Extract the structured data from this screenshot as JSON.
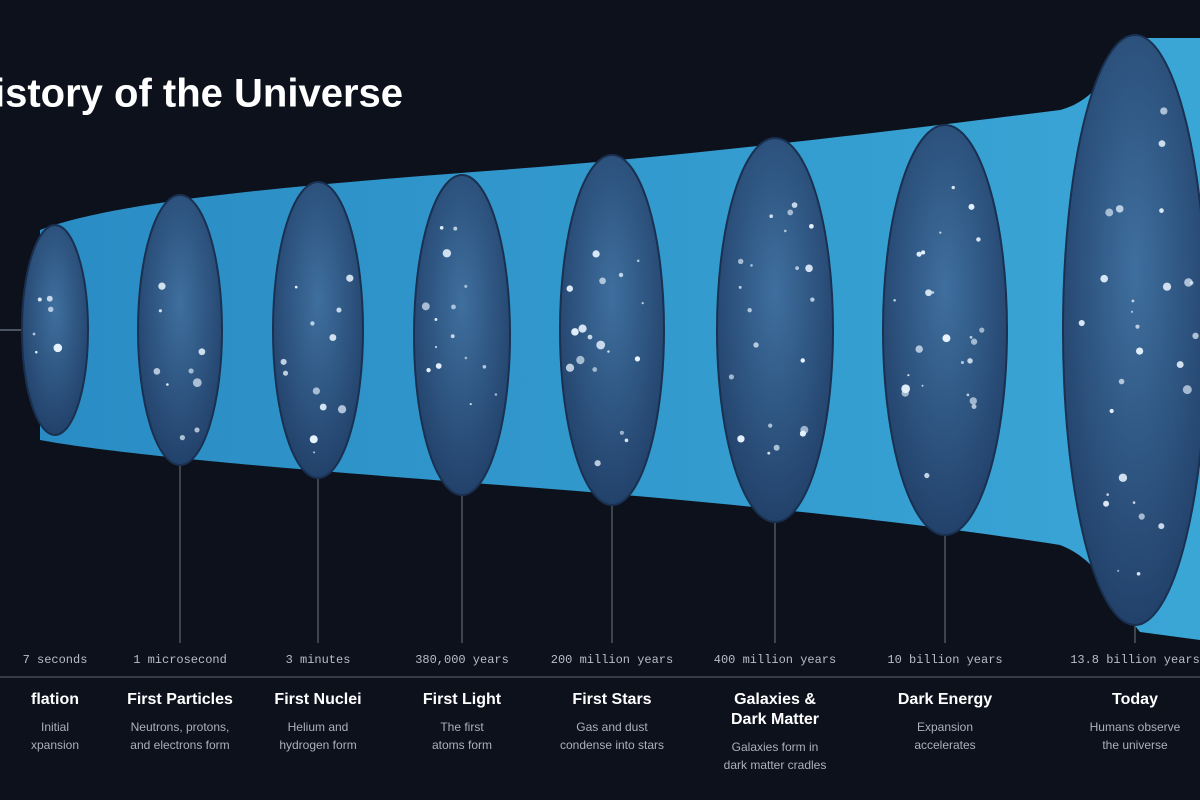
{
  "header": {
    "title": "istory of the Universe"
  },
  "stages": [
    {
      "time": "7 seconds",
      "name": "flation",
      "description": [
        "Initial",
        "xpansion"
      ]
    },
    {
      "time": "1 microsecond",
      "name": "First Particles",
      "description": [
        "Neutrons, protons,",
        "and electrons form"
      ]
    },
    {
      "time": "3 minutes",
      "name": "First Nuclei",
      "description": [
        "Helium and",
        "hydrogen form"
      ]
    },
    {
      "time": "380,000 years",
      "name": "First Light",
      "description": [
        "The first",
        "atoms form"
      ]
    },
    {
      "time": "200 million years",
      "name": "First Stars",
      "description": [
        "Gas and dust",
        "condense into stars"
      ]
    },
    {
      "time": "400 million years",
      "name": [
        "Galaxies &",
        "Dark Matter"
      ],
      "description": [
        "Galaxies form in",
        "dark matter cradles"
      ]
    },
    {
      "time": "10 billion years",
      "name": "Dark Energy",
      "description": [
        "Expansion",
        "accelerates"
      ]
    },
    {
      "time": "13.8 billion years",
      "name": "Today",
      "description": [
        "Humans observe",
        "the universe"
      ]
    }
  ]
}
